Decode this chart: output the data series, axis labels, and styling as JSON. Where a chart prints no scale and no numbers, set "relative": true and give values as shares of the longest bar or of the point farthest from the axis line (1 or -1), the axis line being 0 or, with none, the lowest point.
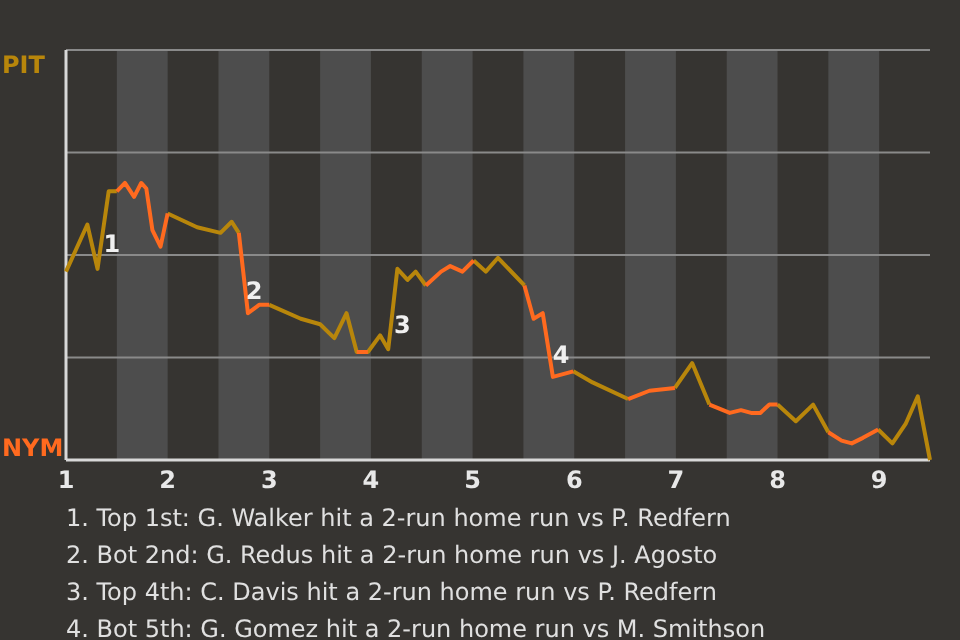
{
  "chart_data": {
    "type": "line",
    "relative": true,
    "x": [
      1.0,
      1.21,
      1.31,
      1.42,
      1.5,
      1.58,
      1.67,
      1.74,
      1.79,
      1.85,
      1.93,
      2.0,
      2.29,
      2.52,
      2.63,
      2.7,
      2.79,
      2.9,
      3.0,
      3.31,
      3.5,
      3.64,
      3.76,
      3.86,
      3.97,
      4.09,
      4.17,
      4.26,
      4.36,
      4.44,
      4.54,
      4.69,
      4.78,
      4.9,
      5.01,
      5.13,
      5.25,
      5.51,
      5.6,
      5.69,
      5.79,
      5.99,
      6.18,
      6.53,
      6.74,
      6.99,
      7.16,
      7.33,
      7.53,
      7.64,
      7.74,
      7.83,
      7.92,
      8.0,
      8.18,
      8.35,
      8.5,
      8.63,
      8.73,
      8.84,
      8.99,
      9.13,
      9.26,
      9.38,
      9.5
    ],
    "series": [
      {
        "color": "#b8860b",
        "values": [
          0.68,
          0.85,
          0.69,
          0.97,
          0.97,
          null,
          null,
          null,
          null,
          null,
          null,
          0.89,
          0.84,
          0.82,
          0.86,
          0.82,
          null,
          null,
          0.56,
          0.51,
          0.49,
          0.44,
          0.53,
          0.39,
          0.39,
          0.45,
          0.4,
          0.69,
          0.65,
          0.68,
          0.63,
          null,
          null,
          null,
          0.72,
          0.68,
          0.73,
          0.63,
          null,
          null,
          null,
          0.32,
          0.28,
          0.22,
          null,
          0.26,
          0.35,
          0.2,
          null,
          null,
          null,
          null,
          null,
          0.2,
          0.14,
          0.2,
          0.1,
          null,
          null,
          null,
          0.11,
          0.06,
          0.13,
          0.23,
          0
        ]
      },
      {
        "color": "#ff6a1f",
        "values": [
          null,
          null,
          null,
          null,
          0.97,
          1,
          0.95,
          1,
          0.98,
          0.83,
          0.77,
          0.89,
          null,
          null,
          null,
          0.82,
          0.53,
          0.56,
          0.56,
          null,
          null,
          null,
          null,
          0.39,
          0.39,
          null,
          null,
          null,
          null,
          null,
          0.63,
          0.68,
          0.7,
          0.68,
          0.72,
          null,
          null,
          0.63,
          0.51,
          0.53,
          0.3,
          0.32,
          null,
          0.22,
          0.25,
          0.26,
          null,
          0.2,
          0.17,
          0.18,
          0.17,
          0.17,
          0.2,
          0.2,
          null,
          null,
          0.1,
          0.07,
          0.06,
          0.08,
          0.11,
          null,
          null,
          null,
          null
        ]
      }
    ],
    "xlim": [
      1,
      9.5
    ],
    "xticks": [
      1,
      2,
      3,
      4,
      5,
      6,
      7,
      8,
      9
    ],
    "ref_lines": [
      {
        "axis": "y",
        "value": 0.37,
        "color": "#8a8a8a"
      },
      {
        "axis": "y",
        "value": 0.74,
        "color": "#8a8a8a"
      },
      {
        "axis": "y",
        "value": 1.11,
        "color": "#8a8a8a"
      }
    ],
    "bands": [
      {
        "axis": "x",
        "from": 1.5,
        "to": 2,
        "color": "#4d4d4d"
      },
      {
        "axis": "x",
        "from": 2.5,
        "to": 3,
        "color": "#4d4d4d"
      },
      {
        "axis": "x",
        "from": 3.5,
        "to": 4,
        "color": "#4d4d4d"
      },
      {
        "axis": "x",
        "from": 4.5,
        "to": 5,
        "color": "#4d4d4d"
      },
      {
        "axis": "x",
        "from": 5.5,
        "to": 6,
        "color": "#4d4d4d"
      },
      {
        "axis": "x",
        "from": 6.5,
        "to": 7,
        "color": "#4d4d4d"
      },
      {
        "axis": "x",
        "from": 7.5,
        "to": 8,
        "color": "#4d4d4d"
      },
      {
        "axis": "x",
        "from": 8.5,
        "to": 9,
        "color": "#4d4d4d"
      }
    ],
    "annotations": [
      {
        "text": "1",
        "x": 1.45,
        "y": 0.78
      },
      {
        "text": "2",
        "x": 2.85,
        "y": 0.61
      },
      {
        "text": "3",
        "x": 4.31,
        "y": 0.49
      },
      {
        "text": "4",
        "x": 5.87,
        "y": 0.38
      },
      "PIT",
      "NYM",
      "1. Top 1st: G. Walker hit a 2-run home run vs P. Redfern",
      "2. Bot 2nd: G. Redus hit a 2-run home run vs J. Agosto",
      "3. Top 4th: C. Davis hit a 2-run home run vs P. Redfern",
      "4. Bot 5th: G. Gomez hit a 2-run home run vs M. Smithson"
    ]
  }
}
